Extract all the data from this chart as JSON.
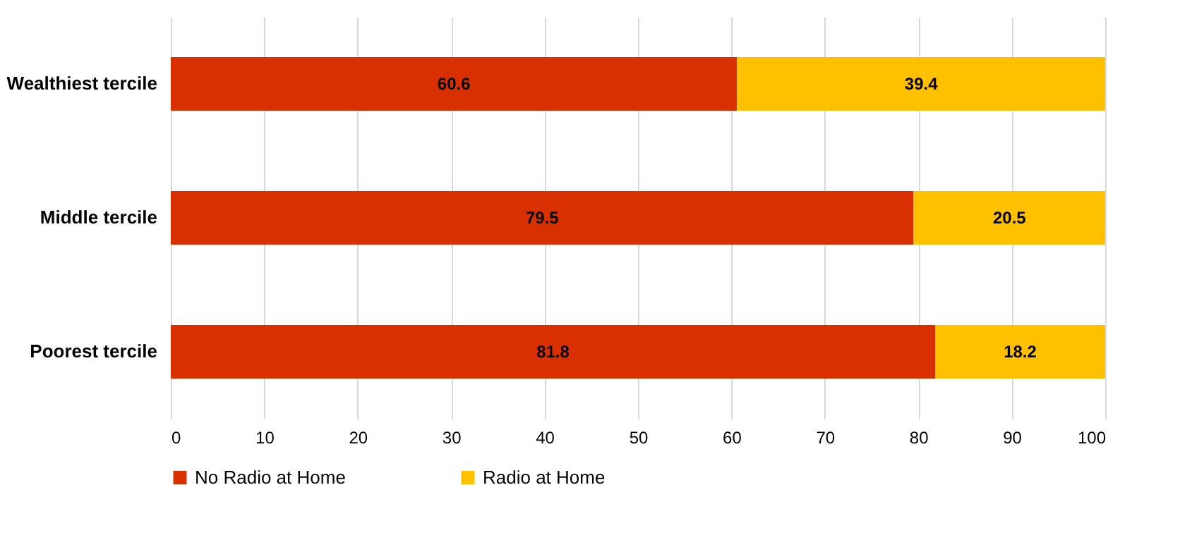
{
  "chart_data": {
    "type": "bar",
    "orientation": "horizontal",
    "stacked": true,
    "categories": [
      "Wealthiest tercile",
      "Middle tercile",
      "Poorest tercile"
    ],
    "series": [
      {
        "name": "No Radio at Home",
        "color": "#d83000",
        "values": [
          60.6,
          79.5,
          81.8
        ]
      },
      {
        "name": "Radio at Home",
        "color": "#ffc000",
        "values": [
          39.4,
          20.5,
          18.2
        ]
      }
    ],
    "xlim": [
      0,
      100
    ],
    "xticks": [
      0,
      10,
      20,
      30,
      40,
      50,
      60,
      70,
      80,
      90,
      100
    ],
    "grid": "x",
    "legend": "bottom",
    "data_labels": true
  }
}
